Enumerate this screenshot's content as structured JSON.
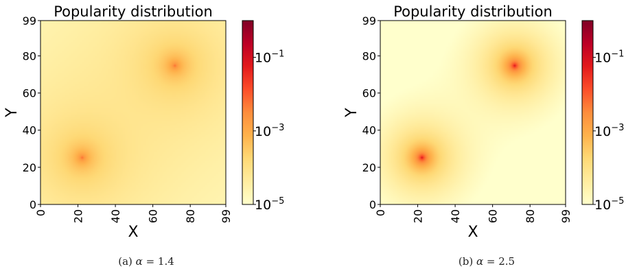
{
  "chart_data": [
    {
      "type": "heatmap",
      "title": "Popularity distribution",
      "xlabel": "X",
      "ylabel": "Y",
      "xlim": [
        0,
        99
      ],
      "ylim": [
        0,
        99
      ],
      "x_ticks": [
        0,
        20,
        40,
        60,
        80,
        99
      ],
      "y_ticks": [
        0,
        20,
        40,
        60,
        80,
        99
      ],
      "hotspots": [
        {
          "x": 22,
          "y": 25
        },
        {
          "x": 72,
          "y": 75
        }
      ],
      "alpha": 1.4,
      "colorbar": {
        "scale": "log",
        "min": 1e-05,
        "max": 1,
        "ticks": [
          {
            "value": 1e-05,
            "base": "10",
            "exp": "−5"
          },
          {
            "value": 0.001,
            "base": "10",
            "exp": "−3"
          },
          {
            "value": 0.1,
            "base": "10",
            "exp": "−1"
          }
        ],
        "colormap": "YlOrRd"
      },
      "caption": {
        "prefix": "(a)",
        "symbol": "α",
        "value": "= 1.4"
      }
    },
    {
      "type": "heatmap",
      "title": "Popularity distribution",
      "xlabel": "X",
      "ylabel": "Y",
      "xlim": [
        0,
        99
      ],
      "ylim": [
        0,
        99
      ],
      "x_ticks": [
        0,
        20,
        40,
        60,
        80,
        99
      ],
      "y_ticks": [
        0,
        20,
        40,
        60,
        80,
        99
      ],
      "hotspots": [
        {
          "x": 22,
          "y": 25
        },
        {
          "x": 72,
          "y": 75
        }
      ],
      "alpha": 2.5,
      "colorbar": {
        "scale": "log",
        "min": 1e-05,
        "max": 1,
        "ticks": [
          {
            "value": 1e-05,
            "base": "10",
            "exp": "−5"
          },
          {
            "value": 0.001,
            "base": "10",
            "exp": "−3"
          },
          {
            "value": 0.1,
            "base": "10",
            "exp": "−1"
          }
        ],
        "colormap": "YlOrRd"
      },
      "caption": {
        "prefix": "(b)",
        "symbol": "α",
        "value": "= 2.5"
      }
    }
  ]
}
